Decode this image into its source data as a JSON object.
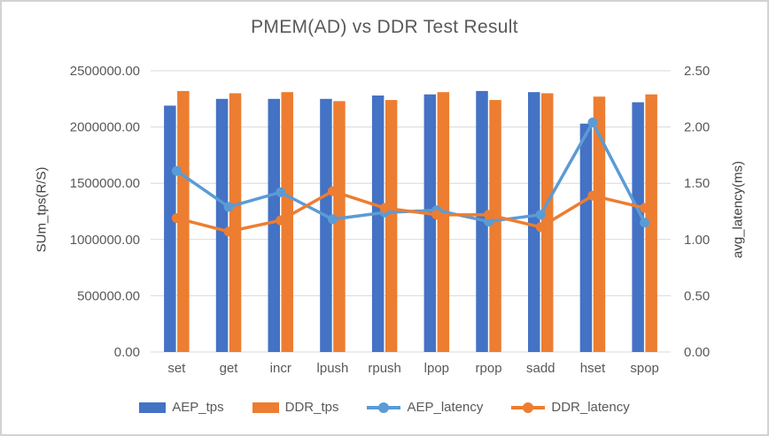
{
  "title": "PMEM(AD) vs DDR Test Result",
  "chart_data": {
    "type": "combo-bar-line",
    "categories": [
      "set",
      "get",
      "incr",
      "lpush",
      "rpush",
      "lpop",
      "rpop",
      "sadd",
      "hset",
      "spop"
    ],
    "series": [
      {
        "name": "AEP_tps",
        "type": "bar",
        "axis": "left",
        "color": "#4472C4",
        "values": [
          2190000,
          2250000,
          2250000,
          2250000,
          2280000,
          2290000,
          2320000,
          2310000,
          2030000,
          2220000
        ]
      },
      {
        "name": "DDR_tps",
        "type": "bar",
        "axis": "left",
        "color": "#ED7D31",
        "values": [
          2320000,
          2300000,
          2310000,
          2230000,
          2240000,
          2310000,
          2240000,
          2300000,
          2270000,
          2290000
        ]
      },
      {
        "name": "AEP_latency",
        "type": "line",
        "axis": "right",
        "color": "#5B9BD5",
        "values": [
          1.61,
          1.29,
          1.42,
          1.18,
          1.24,
          1.26,
          1.16,
          1.22,
          2.04,
          1.15
        ]
      },
      {
        "name": "DDR_latency",
        "type": "line",
        "axis": "right",
        "color": "#ED7D31",
        "values": [
          1.19,
          1.07,
          1.17,
          1.43,
          1.28,
          1.22,
          1.22,
          1.11,
          1.39,
          1.28
        ]
      }
    ],
    "y_left": {
      "label": "SUm_tps(R/S)",
      "min": 0,
      "max": 2500000,
      "step": 500000,
      "decimals": 2
    },
    "y_right": {
      "label": "avg_latency(ms)",
      "min": 0,
      "max": 2.5,
      "step": 0.5,
      "decimals": 2
    },
    "grid": true,
    "legend_position": "bottom",
    "grid_color": "#D9D9D9",
    "text_color": "#595959"
  }
}
